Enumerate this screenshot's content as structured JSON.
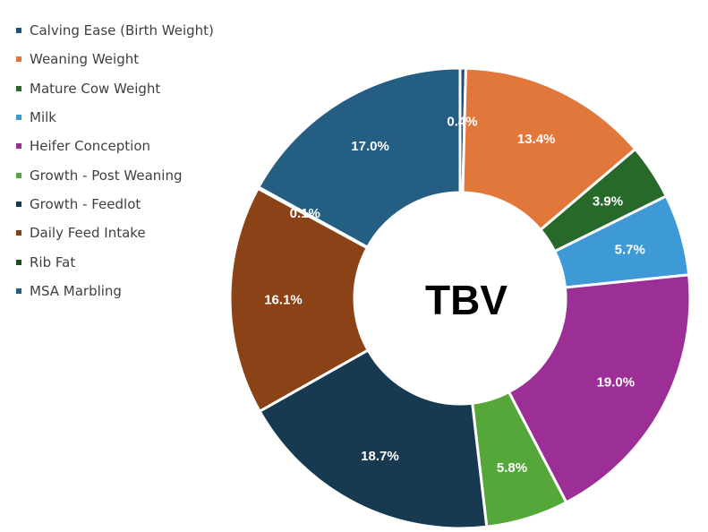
{
  "chart_data": {
    "type": "pie",
    "center_label": "TBV",
    "legend_position": "left",
    "categories": [
      "Calving Ease (Birth Weight)",
      "Weaning Weight",
      "Mature Cow Weight",
      "Milk",
      "Heifer Conception",
      "Growth - Post Weaning",
      "Growth - Feedlot",
      "Daily Feed Intake",
      "Rib Fat",
      "MSA Marbling"
    ],
    "values": [
      0.4,
      13.4,
      3.9,
      5.7,
      19.0,
      5.8,
      18.7,
      16.1,
      0.1,
      17.0
    ],
    "data_labels": [
      "0.4%",
      "13.4%",
      "3.9%",
      "5.7%",
      "19.0%",
      "5.8%",
      "18.7%",
      "16.1%",
      "0.1%",
      "17.0%"
    ],
    "colors": [
      "#1f4e79",
      "#e2773c",
      "#276928",
      "#3d9ad6",
      "#9b2f96",
      "#56a73a",
      "#173a51",
      "#8b4216",
      "#1b4d1b",
      "#245e83"
    ]
  }
}
